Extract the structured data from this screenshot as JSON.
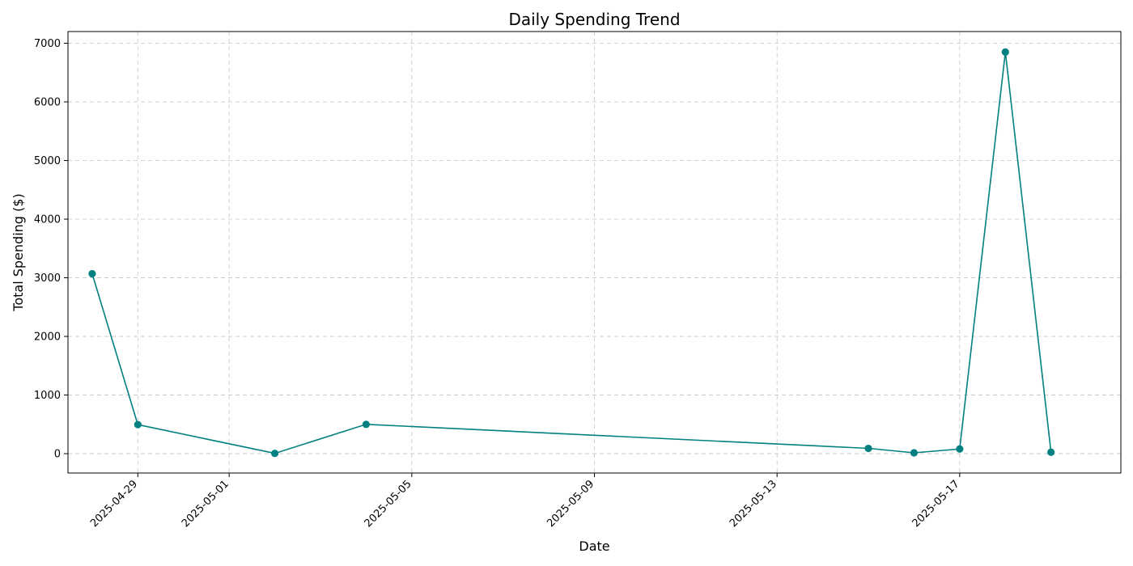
{
  "chart_data": {
    "type": "line",
    "title": "Daily Spending Trend",
    "xlabel": "Date",
    "ylabel": "Total Spending ($)",
    "x": [
      "2025-04-28",
      "2025-04-29",
      "2025-05-02",
      "2025-05-04",
      "2025-05-15",
      "2025-05-16",
      "2025-05-17",
      "2025-05-18",
      "2025-05-19"
    ],
    "series": [
      {
        "values": [
          3070,
          495,
          5,
          500,
          90,
          15,
          80,
          6850,
          25
        ]
      }
    ],
    "xlim": [
      "2025-04-27",
      "2025-05-20"
    ],
    "ylim": [
      -330,
      7200
    ],
    "x_ticks": [
      "2025-04-29",
      "2025-05-01",
      "2025-05-05",
      "2025-05-09",
      "2025-05-13",
      "2025-05-17"
    ],
    "y_ticks": [
      0,
      1000,
      2000,
      3000,
      4000,
      5000,
      6000,
      7000
    ],
    "grid": true,
    "colors": {
      "line": "#008080",
      "marker": "#008080"
    }
  }
}
